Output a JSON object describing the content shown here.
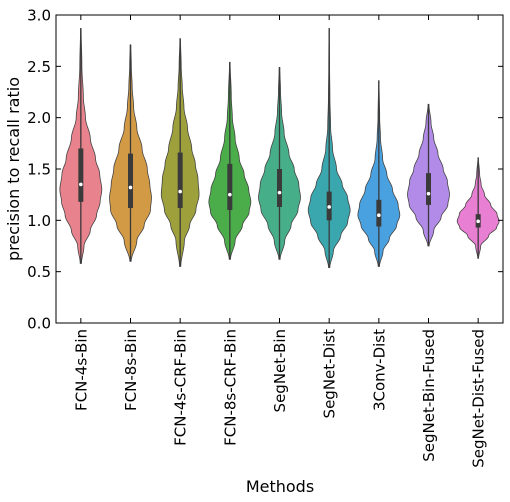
{
  "chart_data": {
    "type": "violin",
    "xlabel": "Methods",
    "ylabel": "precision to recall ratio",
    "ylim": [
      0.0,
      3.0
    ],
    "yticks": [
      "0.0",
      "0.5",
      "1.0",
      "1.5",
      "2.0",
      "2.5",
      "3.0"
    ],
    "grid": false,
    "categories": [
      "FCN-4s-Bin",
      "FCN-8s-Bin",
      "FCN-4s-CRF-Bin",
      "FCN-8s-CRF-Bin",
      "SegNet-Bin",
      "SegNet-Dist",
      "3Conv-Dist",
      "SegNet-Bin-Fused",
      "SegNet-Dist-Fused"
    ],
    "colors": [
      "#e8828c",
      "#d29a45",
      "#9ea13b",
      "#4aad49",
      "#47ae8a",
      "#3aa7ae",
      "#4aa1e0",
      "#b28ae8",
      "#e87fd2"
    ],
    "series": [
      {
        "min": 0.58,
        "q1": 1.18,
        "median": 1.35,
        "q3": 1.7,
        "max": 2.87,
        "density": [
          [
            0.58,
            0.03
          ],
          [
            0.75,
            0.15
          ],
          [
            0.9,
            0.45
          ],
          [
            1.05,
            0.75
          ],
          [
            1.18,
            0.92
          ],
          [
            1.3,
            1.0
          ],
          [
            1.45,
            0.9
          ],
          [
            1.6,
            0.7
          ],
          [
            1.8,
            0.45
          ],
          [
            2.0,
            0.22
          ],
          [
            2.2,
            0.12
          ],
          [
            2.5,
            0.05
          ],
          [
            2.87,
            0.015
          ]
        ]
      },
      {
        "min": 0.6,
        "q1": 1.12,
        "median": 1.32,
        "q3": 1.65,
        "max": 2.71,
        "density": [
          [
            0.6,
            0.03
          ],
          [
            0.8,
            0.3
          ],
          [
            0.95,
            0.65
          ],
          [
            1.1,
            0.95
          ],
          [
            1.22,
            1.0
          ],
          [
            1.35,
            0.92
          ],
          [
            1.5,
            0.8
          ],
          [
            1.7,
            0.55
          ],
          [
            1.9,
            0.3
          ],
          [
            2.1,
            0.15
          ],
          [
            2.3,
            0.08
          ],
          [
            2.5,
            0.04
          ],
          [
            2.71,
            0.015
          ]
        ]
      },
      {
        "min": 0.55,
        "q1": 1.12,
        "median": 1.28,
        "q3": 1.66,
        "max": 2.77,
        "density": [
          [
            0.55,
            0.03
          ],
          [
            0.8,
            0.2
          ],
          [
            0.95,
            0.45
          ],
          [
            1.1,
            0.75
          ],
          [
            1.25,
            0.9
          ],
          [
            1.4,
            0.85
          ],
          [
            1.55,
            0.72
          ],
          [
            1.7,
            0.55
          ],
          [
            1.9,
            0.35
          ],
          [
            2.1,
            0.18
          ],
          [
            2.3,
            0.1
          ],
          [
            2.5,
            0.05
          ],
          [
            2.77,
            0.015
          ]
        ]
      },
      {
        "min": 0.62,
        "q1": 1.1,
        "median": 1.25,
        "q3": 1.55,
        "max": 2.54,
        "density": [
          [
            0.62,
            0.03
          ],
          [
            0.8,
            0.25
          ],
          [
            0.95,
            0.6
          ],
          [
            1.08,
            0.92
          ],
          [
            1.18,
            1.0
          ],
          [
            1.3,
            0.9
          ],
          [
            1.45,
            0.68
          ],
          [
            1.6,
            0.45
          ],
          [
            1.8,
            0.25
          ],
          [
            2.0,
            0.12
          ],
          [
            2.2,
            0.07
          ],
          [
            2.54,
            0.015
          ]
        ]
      },
      {
        "min": 0.62,
        "q1": 1.13,
        "median": 1.27,
        "q3": 1.5,
        "max": 2.49,
        "density": [
          [
            0.62,
            0.03
          ],
          [
            0.8,
            0.25
          ],
          [
            0.95,
            0.55
          ],
          [
            1.1,
            0.88
          ],
          [
            1.22,
            1.0
          ],
          [
            1.35,
            0.92
          ],
          [
            1.5,
            0.7
          ],
          [
            1.65,
            0.45
          ],
          [
            1.85,
            0.22
          ],
          [
            2.05,
            0.1
          ],
          [
            2.25,
            0.05
          ],
          [
            2.49,
            0.015
          ]
        ]
      },
      {
        "min": 0.54,
        "q1": 1.0,
        "median": 1.13,
        "q3": 1.28,
        "max": 2.87,
        "density": [
          [
            0.54,
            0.03
          ],
          [
            0.7,
            0.2
          ],
          [
            0.85,
            0.55
          ],
          [
            0.98,
            0.88
          ],
          [
            1.1,
            1.0
          ],
          [
            1.22,
            0.88
          ],
          [
            1.35,
            0.62
          ],
          [
            1.5,
            0.35
          ],
          [
            1.7,
            0.16
          ],
          [
            1.9,
            0.07
          ],
          [
            2.2,
            0.035
          ],
          [
            2.5,
            0.02
          ],
          [
            2.87,
            0.01
          ]
        ]
      },
      {
        "min": 0.55,
        "q1": 0.94,
        "median": 1.05,
        "q3": 1.2,
        "max": 2.36,
        "density": [
          [
            0.55,
            0.03
          ],
          [
            0.7,
            0.2
          ],
          [
            0.82,
            0.5
          ],
          [
            0.95,
            0.85
          ],
          [
            1.05,
            1.0
          ],
          [
            1.15,
            0.92
          ],
          [
            1.3,
            0.65
          ],
          [
            1.45,
            0.38
          ],
          [
            1.6,
            0.18
          ],
          [
            1.8,
            0.08
          ],
          [
            2.0,
            0.04
          ],
          [
            2.36,
            0.01
          ]
        ]
      },
      {
        "min": 0.75,
        "q1": 1.15,
        "median": 1.26,
        "q3": 1.46,
        "max": 2.13,
        "density": [
          [
            0.75,
            0.03
          ],
          [
            0.9,
            0.25
          ],
          [
            1.03,
            0.6
          ],
          [
            1.15,
            0.92
          ],
          [
            1.25,
            1.0
          ],
          [
            1.38,
            0.9
          ],
          [
            1.5,
            0.7
          ],
          [
            1.65,
            0.45
          ],
          [
            1.8,
            0.25
          ],
          [
            1.95,
            0.12
          ],
          [
            2.13,
            0.02
          ]
        ]
      },
      {
        "min": 0.63,
        "q1": 0.93,
        "median": 0.99,
        "q3": 1.06,
        "max": 1.61,
        "density": [
          [
            0.63,
            0.02
          ],
          [
            0.75,
            0.12
          ],
          [
            0.85,
            0.5
          ],
          [
            0.93,
            0.88
          ],
          [
            0.99,
            1.0
          ],
          [
            1.06,
            0.9
          ],
          [
            1.15,
            0.6
          ],
          [
            1.25,
            0.3
          ],
          [
            1.35,
            0.14
          ],
          [
            1.45,
            0.07
          ],
          [
            1.61,
            0.01
          ]
        ]
      }
    ]
  }
}
